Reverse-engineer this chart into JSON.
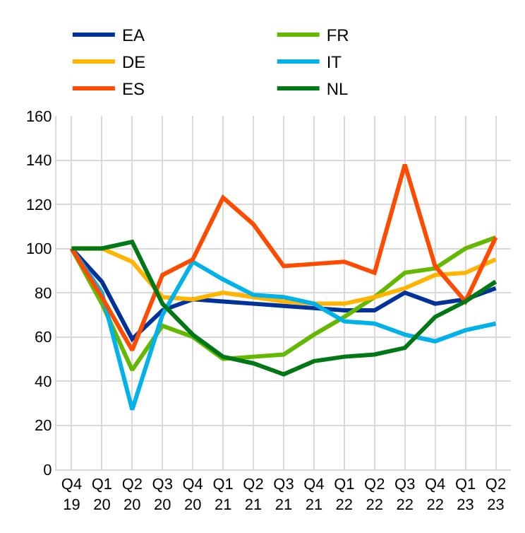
{
  "chart_data": {
    "type": "line",
    "categories": [
      "Q4\n19",
      "Q1\n20",
      "Q2\n20",
      "Q3\n20",
      "Q4\n20",
      "Q1\n21",
      "Q2\n21",
      "Q3\n21",
      "Q4\n21",
      "Q1\n22",
      "Q2\n22",
      "Q3\n22",
      "Q4\n22",
      "Q1\n23",
      "Q2\n23"
    ],
    "series": [
      {
        "name": "EA",
        "color": "#003299",
        "values": [
          100,
          85,
          59,
          72,
          77,
          76,
          75,
          74,
          73,
          72,
          72,
          80,
          75,
          77,
          82
        ]
      },
      {
        "name": "FR",
        "color": "#65b800",
        "values": [
          100,
          75,
          45,
          65,
          60,
          50,
          51,
          52,
          61,
          69,
          78,
          89,
          91,
          100,
          105
        ]
      },
      {
        "name": "DE",
        "color": "#ffb400",
        "values": [
          100,
          100,
          94,
          78,
          77,
          80,
          78,
          76,
          75,
          75,
          78,
          82,
          88,
          89,
          95
        ]
      },
      {
        "name": "IT",
        "color": "#00b1ea",
        "values": [
          100,
          80,
          27,
          70,
          94,
          86,
          79,
          78,
          75,
          67,
          66,
          61,
          58,
          63,
          66
        ]
      },
      {
        "name": "ES",
        "color": "#ff4b00",
        "values": [
          100,
          78,
          54,
          88,
          95,
          123,
          111,
          92,
          93,
          94,
          89,
          138,
          92,
          76,
          105
        ]
      },
      {
        "name": "NL",
        "color": "#007816",
        "values": [
          100,
          100,
          103,
          75,
          61,
          51,
          48,
          43,
          49,
          51,
          52,
          55,
          69,
          76,
          85
        ]
      }
    ],
    "ylim": [
      0,
      160
    ],
    "yticks": [
      0,
      20,
      40,
      60,
      80,
      100,
      120,
      140,
      160
    ],
    "grid": true,
    "legend": "top",
    "marker": "none",
    "line_style": "solid"
  }
}
